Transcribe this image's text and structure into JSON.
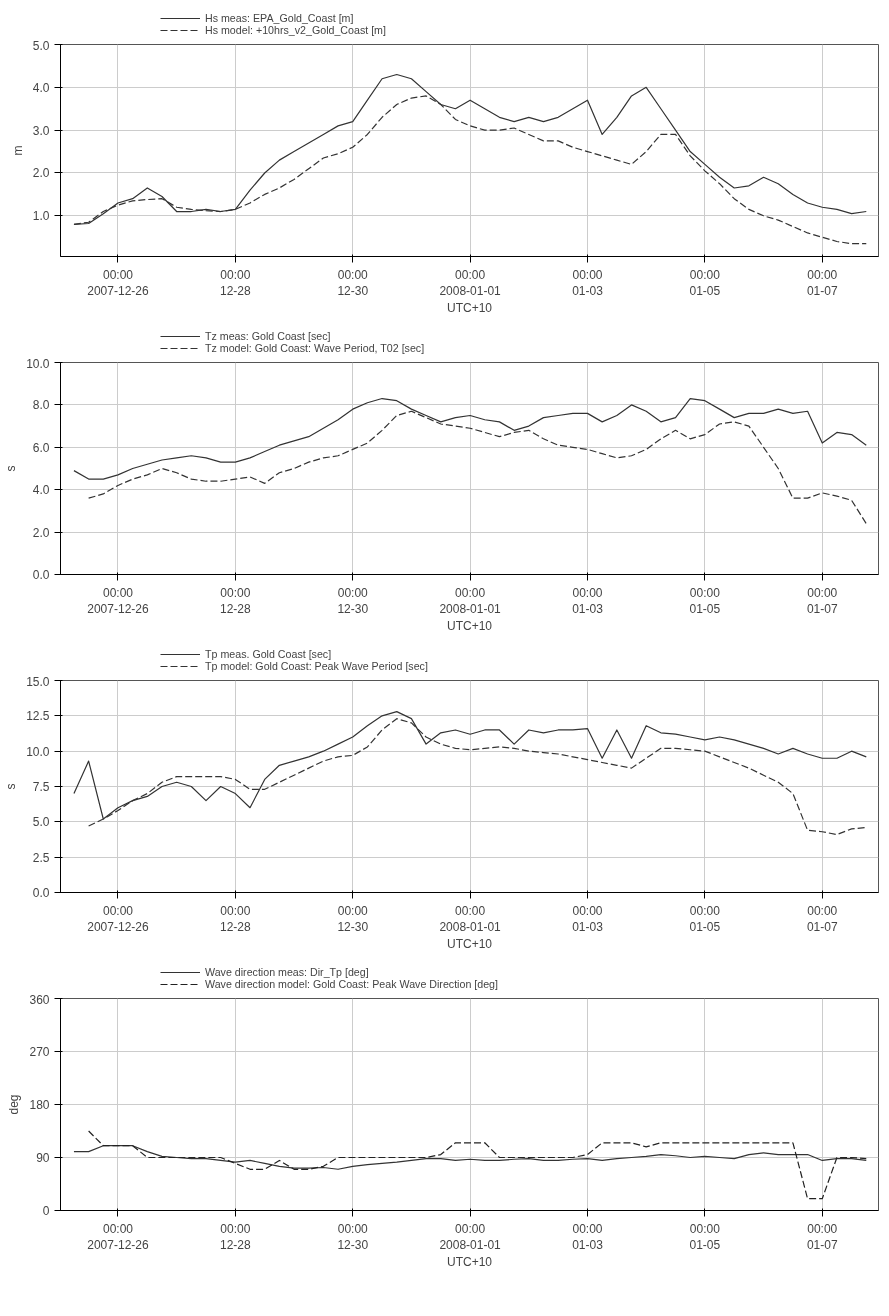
{
  "chart_data": [
    {
      "type": "line",
      "ylabel": "m",
      "xlabel": "UTC+10",
      "legend": "top left",
      "grid": true,
      "xlim": [
        "2007-12-25T00:30",
        "2008-01-07T23:00"
      ],
      "xticks": [
        {
          "value": "2007-12-26T00:00",
          "label": "00:00\n2007-12-26"
        },
        {
          "value": "2007-12-28T00:00",
          "label": "00:00\n12-28"
        },
        {
          "value": "2007-12-30T00:00",
          "label": "00:00\n12-30"
        },
        {
          "value": "2008-01-01T00:00",
          "label": "00:00\n2008-01-01"
        },
        {
          "value": "2008-01-03T00:00",
          "label": "00:00\n01-03"
        },
        {
          "value": "2008-01-05T00:00",
          "label": "00:00\n01-05"
        },
        {
          "value": "2008-01-07T00:00",
          "label": "00:00\n01-07"
        }
      ],
      "ylim": [
        0.05,
        5.0
      ],
      "yticks": [
        {
          "value": 1,
          "label": "1.0"
        },
        {
          "value": 2,
          "label": "2.0"
        },
        {
          "value": 3,
          "label": "3.0"
        },
        {
          "value": 4,
          "label": "4.0"
        },
        {
          "value": 5,
          "label": "5.0"
        }
      ],
      "x": [
        "2007-12-25T06:00",
        "2007-12-25T12:00",
        "2007-12-25T18:00",
        "2007-12-26T00:00",
        "2007-12-26T06:00",
        "2007-12-26T12:00",
        "2007-12-26T18:00",
        "2007-12-27T00:00",
        "2007-12-27T06:00",
        "2007-12-27T12:00",
        "2007-12-27T18:00",
        "2007-12-28T00:00",
        "2007-12-28T06:00",
        "2007-12-28T12:00",
        "2007-12-28T18:00",
        "2007-12-29T00:00",
        "2007-12-29T06:00",
        "2007-12-29T12:00",
        "2007-12-29T18:00",
        "2007-12-30T00:00",
        "2007-12-30T06:00",
        "2007-12-30T12:00",
        "2007-12-30T18:00",
        "2007-12-31T00:00",
        "2007-12-31T06:00",
        "2007-12-31T12:00",
        "2007-12-31T18:00",
        "2008-01-01T00:00",
        "2008-01-01T06:00",
        "2008-01-01T12:00",
        "2008-01-01T18:00",
        "2008-01-02T00:00",
        "2008-01-02T06:00",
        "2008-01-02T12:00",
        "2008-01-02T18:00",
        "2008-01-03T00:00",
        "2008-01-03T06:00",
        "2008-01-03T12:00",
        "2008-01-03T18:00",
        "2008-01-04T00:00",
        "2008-01-04T06:00",
        "2008-01-04T12:00",
        "2008-01-04T18:00",
        "2008-01-05T00:00",
        "2008-01-05T06:00",
        "2008-01-05T12:00",
        "2008-01-05T18:00",
        "2008-01-06T00:00",
        "2008-01-06T06:00",
        "2008-01-06T12:00",
        "2008-01-06T18:00",
        "2008-01-07T00:00",
        "2008-01-07T06:00",
        "2008-01-07T12:00",
        "2008-01-07T18:00"
      ],
      "series": [
        {
          "name": "Hs meas: EPA_Gold_Coast [m]",
          "color": "#333333",
          "line_style": "solid",
          "values": [
            0.8,
            0.82,
            1.05,
            1.3,
            1.4,
            1.65,
            1.45,
            1.1,
            1.1,
            1.15,
            1.1,
            1.15,
            1.6,
            2.0,
            2.3,
            2.5,
            2.7,
            2.9,
            3.1,
            3.2,
            3.7,
            4.2,
            4.3,
            4.2,
            3.9,
            3.6,
            3.5,
            3.7,
            3.5,
            3.3,
            3.2,
            3.3,
            3.2,
            3.3,
            3.5,
            3.7,
            2.9,
            3.3,
            3.8,
            4.0,
            3.5,
            3.0,
            2.5,
            2.2,
            1.9,
            1.65,
            1.7,
            1.9,
            1.75,
            1.5,
            1.3,
            1.2,
            1.15,
            1.05,
            1.1
          ]
        },
        {
          "name": "Hs model: +10hrs_v2_Gold_Coast [m]",
          "color": "#333333",
          "line_style": "dashed",
          "values": [
            0.8,
            0.85,
            1.1,
            1.25,
            1.35,
            1.38,
            1.4,
            1.2,
            1.15,
            1.12,
            1.1,
            1.15,
            1.3,
            1.5,
            1.65,
            1.85,
            2.1,
            2.35,
            2.45,
            2.6,
            2.9,
            3.3,
            3.6,
            3.75,
            3.8,
            3.6,
            3.25,
            3.1,
            3.0,
            3.0,
            3.05,
            2.9,
            2.75,
            2.75,
            2.6,
            2.5,
            2.4,
            2.3,
            2.2,
            2.5,
            2.9,
            2.9,
            2.4,
            2.05,
            1.75,
            1.4,
            1.15,
            1.0,
            0.9,
            0.75,
            0.6,
            0.5,
            0.4,
            0.35,
            0.35
          ]
        }
      ]
    },
    {
      "type": "line",
      "ylabel": "s",
      "xlabel": "UTC+10",
      "legend": "top left",
      "grid": true,
      "xlim": [
        "2007-12-25T00:30",
        "2008-01-07T23:00"
      ],
      "xticks": [
        {
          "value": "2007-12-26T00:00",
          "label": "00:00\n2007-12-26"
        },
        {
          "value": "2007-12-28T00:00",
          "label": "00:00\n12-28"
        },
        {
          "value": "2007-12-30T00:00",
          "label": "00:00\n12-30"
        },
        {
          "value": "2008-01-01T00:00",
          "label": "00:00\n2008-01-01"
        },
        {
          "value": "2008-01-03T00:00",
          "label": "00:00\n01-03"
        },
        {
          "value": "2008-01-05T00:00",
          "label": "00:00\n01-05"
        },
        {
          "value": "2008-01-07T00:00",
          "label": "00:00\n01-07"
        }
      ],
      "ylim": [
        0,
        10
      ],
      "yticks": [
        {
          "value": 0,
          "label": "0.0"
        },
        {
          "value": 2,
          "label": "2.0"
        },
        {
          "value": 4,
          "label": "4.0"
        },
        {
          "value": 6,
          "label": "6.0"
        },
        {
          "value": 8,
          "label": "8.0"
        },
        {
          "value": 10,
          "label": "10.0"
        }
      ],
      "x": [
        "2007-12-25T06:00",
        "2007-12-25T12:00",
        "2007-12-25T18:00",
        "2007-12-26T00:00",
        "2007-12-26T06:00",
        "2007-12-26T12:00",
        "2007-12-26T18:00",
        "2007-12-27T00:00",
        "2007-12-27T06:00",
        "2007-12-27T12:00",
        "2007-12-27T18:00",
        "2007-12-28T00:00",
        "2007-12-28T06:00",
        "2007-12-28T12:00",
        "2007-12-28T18:00",
        "2007-12-29T00:00",
        "2007-12-29T06:00",
        "2007-12-29T12:00",
        "2007-12-29T18:00",
        "2007-12-30T00:00",
        "2007-12-30T06:00",
        "2007-12-30T12:00",
        "2007-12-30T18:00",
        "2007-12-31T00:00",
        "2007-12-31T06:00",
        "2007-12-31T12:00",
        "2007-12-31T18:00",
        "2008-01-01T00:00",
        "2008-01-01T06:00",
        "2008-01-01T12:00",
        "2008-01-01T18:00",
        "2008-01-02T00:00",
        "2008-01-02T06:00",
        "2008-01-02T12:00",
        "2008-01-02T18:00",
        "2008-01-03T00:00",
        "2008-01-03T06:00",
        "2008-01-03T12:00",
        "2008-01-03T18:00",
        "2008-01-04T00:00",
        "2008-01-04T06:00",
        "2008-01-04T12:00",
        "2008-01-04T18:00",
        "2008-01-05T00:00",
        "2008-01-05T06:00",
        "2008-01-05T12:00",
        "2008-01-05T18:00",
        "2008-01-06T00:00",
        "2008-01-06T06:00",
        "2008-01-06T12:00",
        "2008-01-06T18:00",
        "2008-01-07T00:00",
        "2008-01-07T06:00",
        "2008-01-07T12:00",
        "2008-01-07T18:00"
      ],
      "series": [
        {
          "name": "Tz meas: Gold Coast [sec]",
          "color": "#333333",
          "line_style": "solid",
          "values": [
            4.9,
            4.5,
            4.5,
            4.7,
            5.0,
            5.2,
            5.4,
            5.5,
            5.6,
            5.5,
            5.3,
            5.3,
            5.5,
            5.8,
            6.1,
            6.3,
            6.5,
            6.9,
            7.3,
            7.8,
            8.1,
            8.3,
            8.2,
            7.8,
            7.5,
            7.2,
            7.4,
            7.5,
            7.3,
            7.2,
            6.8,
            7.0,
            7.4,
            7.5,
            7.6,
            7.6,
            7.2,
            7.5,
            8.0,
            7.7,
            7.2,
            7.4,
            8.3,
            8.2,
            7.8,
            7.4,
            7.6,
            7.6,
            7.8,
            7.6,
            7.7,
            6.2,
            6.7,
            6.6,
            6.1
          ]
        },
        {
          "name": "Tz model: Gold Coast: Wave Period, T02 [sec]",
          "color": "#333333",
          "line_style": "dashed",
          "values": [
            null,
            3.6,
            3.8,
            4.2,
            4.5,
            4.7,
            5.0,
            4.8,
            4.5,
            4.4,
            4.4,
            4.5,
            4.6,
            4.3,
            4.8,
            5.0,
            5.3,
            5.5,
            5.6,
            5.9,
            6.2,
            6.8,
            7.5,
            7.7,
            7.4,
            7.1,
            7.0,
            6.9,
            6.7,
            6.5,
            6.7,
            6.8,
            6.4,
            6.1,
            6.0,
            5.9,
            5.7,
            5.5,
            5.6,
            5.9,
            6.4,
            6.8,
            6.4,
            6.6,
            7.1,
            7.2,
            7.0,
            6.0,
            5.0,
            3.6,
            3.6,
            3.85,
            3.7,
            3.5,
            2.4
          ]
        }
      ]
    },
    {
      "type": "line",
      "ylabel": "s",
      "xlabel": "UTC+10",
      "legend": "top left",
      "grid": true,
      "xlim": [
        "2007-12-25T00:30",
        "2008-01-07T23:00"
      ],
      "xticks": [
        {
          "value": "2007-12-26T00:00",
          "label": "00:00\n2007-12-26"
        },
        {
          "value": "2007-12-28T00:00",
          "label": "00:00\n12-28"
        },
        {
          "value": "2007-12-30T00:00",
          "label": "00:00\n12-30"
        },
        {
          "value": "2008-01-01T00:00",
          "label": "00:00\n2008-01-01"
        },
        {
          "value": "2008-01-03T00:00",
          "label": "00:00\n01-03"
        },
        {
          "value": "2008-01-05T00:00",
          "label": "00:00\n01-05"
        },
        {
          "value": "2008-01-07T00:00",
          "label": "00:00\n01-07"
        }
      ],
      "ylim": [
        0,
        15
      ],
      "yticks": [
        {
          "value": 0,
          "label": "0.0"
        },
        2.5,
        {
          "value": 5,
          "label": "5.0"
        },
        7.5,
        {
          "value": 10,
          "label": "10.0"
        },
        12.5,
        {
          "value": 15,
          "label": "15.0"
        }
      ],
      "x": [
        "2007-12-25T06:00",
        "2007-12-25T12:00",
        "2007-12-25T18:00",
        "2007-12-26T00:00",
        "2007-12-26T06:00",
        "2007-12-26T12:00",
        "2007-12-26T18:00",
        "2007-12-27T00:00",
        "2007-12-27T06:00",
        "2007-12-27T12:00",
        "2007-12-27T18:00",
        "2007-12-28T00:00",
        "2007-12-28T06:00",
        "2007-12-28T12:00",
        "2007-12-28T18:00",
        "2007-12-29T00:00",
        "2007-12-29T06:00",
        "2007-12-29T12:00",
        "2007-12-29T18:00",
        "2007-12-30T00:00",
        "2007-12-30T06:00",
        "2007-12-30T12:00",
        "2007-12-30T18:00",
        "2007-12-31T00:00",
        "2007-12-31T06:00",
        "2007-12-31T12:00",
        "2007-12-31T18:00",
        "2008-01-01T00:00",
        "2008-01-01T06:00",
        "2008-01-01T12:00",
        "2008-01-01T18:00",
        "2008-01-02T00:00",
        "2008-01-02T06:00",
        "2008-01-02T12:00",
        "2008-01-02T18:00",
        "2008-01-03T00:00",
        "2008-01-03T06:00",
        "2008-01-03T12:00",
        "2008-01-03T18:00",
        "2008-01-04T00:00",
        "2008-01-04T06:00",
        "2008-01-04T12:00",
        "2008-01-04T18:00",
        "2008-01-05T00:00",
        "2008-01-05T06:00",
        "2008-01-05T12:00",
        "2008-01-05T18:00",
        "2008-01-06T00:00",
        "2008-01-06T06:00",
        "2008-01-06T12:00",
        "2008-01-06T18:00",
        "2008-01-07T00:00",
        "2008-01-07T06:00",
        "2008-01-07T12:00",
        "2008-01-07T18:00"
      ],
      "series": [
        {
          "name": "Tp meas. Gold Coast [sec]",
          "color": "#333333",
          "line_style": "solid",
          "values": [
            7.0,
            9.3,
            5.2,
            6.0,
            6.5,
            6.8,
            7.5,
            7.8,
            7.5,
            6.5,
            7.5,
            7.0,
            6.0,
            8.0,
            9.0,
            9.3,
            9.6,
            10.0,
            10.5,
            11.0,
            11.8,
            12.5,
            12.8,
            12.3,
            10.5,
            11.3,
            11.5,
            11.2,
            11.5,
            11.5,
            10.5,
            11.5,
            11.3,
            11.5,
            11.5,
            11.6,
            9.5,
            11.5,
            9.5,
            11.8,
            11.3,
            11.2,
            11.0,
            10.8,
            11.0,
            10.8,
            10.5,
            10.2,
            9.8,
            10.2,
            9.8,
            9.5,
            9.5,
            10.0,
            9.6
          ]
        },
        {
          "name": "Tp model: Gold Coast: Peak Wave Period [sec]",
          "color": "#333333",
          "line_style": "dashed",
          "values": [
            null,
            4.7,
            5.2,
            5.8,
            6.5,
            7.0,
            7.8,
            8.2,
            8.2,
            8.2,
            8.2,
            8.0,
            7.3,
            7.3,
            7.8,
            8.3,
            8.8,
            9.3,
            9.6,
            9.7,
            10.3,
            11.5,
            12.3,
            12.0,
            11.0,
            10.5,
            10.2,
            10.1,
            10.2,
            10.3,
            10.2,
            10.0,
            9.9,
            9.8,
            9.6,
            9.4,
            9.2,
            9.0,
            8.8,
            9.5,
            10.2,
            10.2,
            10.1,
            10.0,
            9.6,
            9.2,
            8.8,
            8.3,
            7.8,
            7.0,
            4.4,
            4.3,
            4.1,
            4.5,
            4.6
          ]
        }
      ]
    },
    {
      "type": "line",
      "ylabel": "deg",
      "xlabel": "UTC+10",
      "legend": "top left",
      "grid": true,
      "xlim": [
        "2007-12-25T00:30",
        "2008-01-07T23:00"
      ],
      "xticks": [
        {
          "value": "2007-12-26T00:00",
          "label": "00:00\n2007-12-26"
        },
        {
          "value": "2007-12-28T00:00",
          "label": "00:00\n12-28"
        },
        {
          "value": "2007-12-30T00:00",
          "label": "00:00\n12-30"
        },
        {
          "value": "2008-01-01T00:00",
          "label": "00:00\n2008-01-01"
        },
        {
          "value": "2008-01-03T00:00",
          "label": "00:00\n01-03"
        },
        {
          "value": "2008-01-05T00:00",
          "label": "00:00\n01-05"
        },
        {
          "value": "2008-01-07T00:00",
          "label": "00:00\n01-07"
        }
      ],
      "ylim": [
        0,
        360
      ],
      "yticks": [
        0,
        90,
        180,
        270,
        360
      ],
      "x": [
        "2007-12-25T06:00",
        "2007-12-25T12:00",
        "2007-12-25T18:00",
        "2007-12-26T00:00",
        "2007-12-26T06:00",
        "2007-12-26T12:00",
        "2007-12-26T18:00",
        "2007-12-27T00:00",
        "2007-12-27T06:00",
        "2007-12-27T12:00",
        "2007-12-27T18:00",
        "2007-12-28T00:00",
        "2007-12-28T06:00",
        "2007-12-28T12:00",
        "2007-12-28T18:00",
        "2007-12-29T00:00",
        "2007-12-29T06:00",
        "2007-12-29T12:00",
        "2007-12-29T18:00",
        "2007-12-30T00:00",
        "2007-12-30T06:00",
        "2007-12-30T12:00",
        "2007-12-30T18:00",
        "2007-12-31T00:00",
        "2007-12-31T06:00",
        "2007-12-31T12:00",
        "2007-12-31T18:00",
        "2008-01-01T00:00",
        "2008-01-01T06:00",
        "2008-01-01T12:00",
        "2008-01-01T18:00",
        "2008-01-02T00:00",
        "2008-01-02T06:00",
        "2008-01-02T12:00",
        "2008-01-02T18:00",
        "2008-01-03T00:00",
        "2008-01-03T06:00",
        "2008-01-03T12:00",
        "2008-01-03T18:00",
        "2008-01-04T00:00",
        "2008-01-04T06:00",
        "2008-01-04T12:00",
        "2008-01-04T18:00",
        "2008-01-05T00:00",
        "2008-01-05T06:00",
        "2008-01-05T12:00",
        "2008-01-05T18:00",
        "2008-01-06T00:00",
        "2008-01-06T06:00",
        "2008-01-06T12:00",
        "2008-01-06T18:00",
        "2008-01-07T00:00",
        "2008-01-07T06:00",
        "2008-01-07T12:00",
        "2008-01-07T18:00"
      ],
      "series": [
        {
          "name": "Wave direction meas: Dir_Tp [deg]",
          "color": "#333333",
          "line_style": "solid",
          "values": [
            100,
            100,
            110,
            110,
            110,
            100,
            92,
            90,
            88,
            88,
            85,
            82,
            85,
            80,
            75,
            72,
            72,
            73,
            70,
            75,
            78,
            80,
            82,
            85,
            88,
            88,
            85,
            87,
            85,
            85,
            87,
            88,
            85,
            85,
            87,
            88,
            85,
            88,
            90,
            92,
            95,
            93,
            90,
            92,
            90,
            88,
            95,
            98,
            95,
            95,
            95,
            85,
            88,
            88,
            85
          ]
        },
        {
          "name": "Wave direction model: Gold Coast: Peak Wave Direction [deg]",
          "color": "#222222",
          "line_style": "dashed",
          "values": [
            null,
            135,
            110,
            110,
            110,
            90,
            90,
            90,
            90,
            90,
            90,
            80,
            70,
            70,
            85,
            70,
            70,
            75,
            90,
            90,
            90,
            90,
            90,
            90,
            90,
            95,
            115,
            115,
            115,
            90,
            90,
            90,
            90,
            90,
            90,
            95,
            115,
            115,
            115,
            108,
            115,
            115,
            115,
            115,
            115,
            115,
            115,
            115,
            115,
            115,
            20,
            20,
            90,
            90,
            88
          ]
        }
      ]
    }
  ]
}
